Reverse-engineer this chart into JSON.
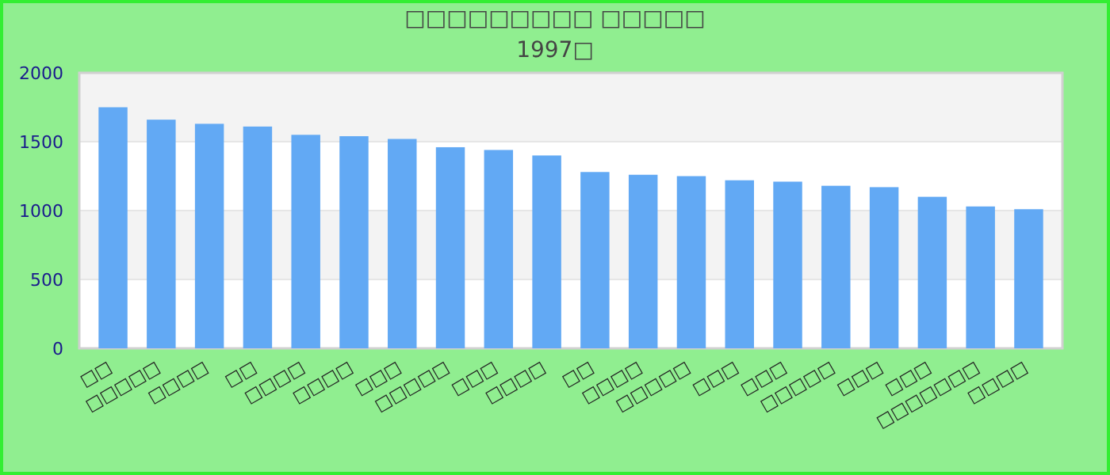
{
  "chart_data": {
    "type": "bar",
    "title": "□□□□□□□□□ □□□□□",
    "subtitle": "1997□",
    "categories": [
      "□□",
      "□□□□□",
      "□□□□",
      "□□",
      "□□□□",
      "□□□□",
      "□□□",
      "□□□□□",
      "□□□",
      "□□□□",
      "□□",
      "□□□□",
      "□□□□□",
      "□□□",
      "□□□",
      "□□□□□",
      "□□□",
      "□□□",
      "□□□□□□□",
      "□□□□"
    ],
    "values": [
      1750,
      1660,
      1630,
      1610,
      1550,
      1540,
      1520,
      1460,
      1440,
      1400,
      1280,
      1260,
      1250,
      1220,
      1210,
      1180,
      1170,
      1100,
      1030,
      1010
    ],
    "color": "#62a9f4",
    "ylim": [
      0,
      2000
    ],
    "yticks": [
      0,
      500,
      1000,
      1500,
      2000
    ],
    "grid": true
  }
}
